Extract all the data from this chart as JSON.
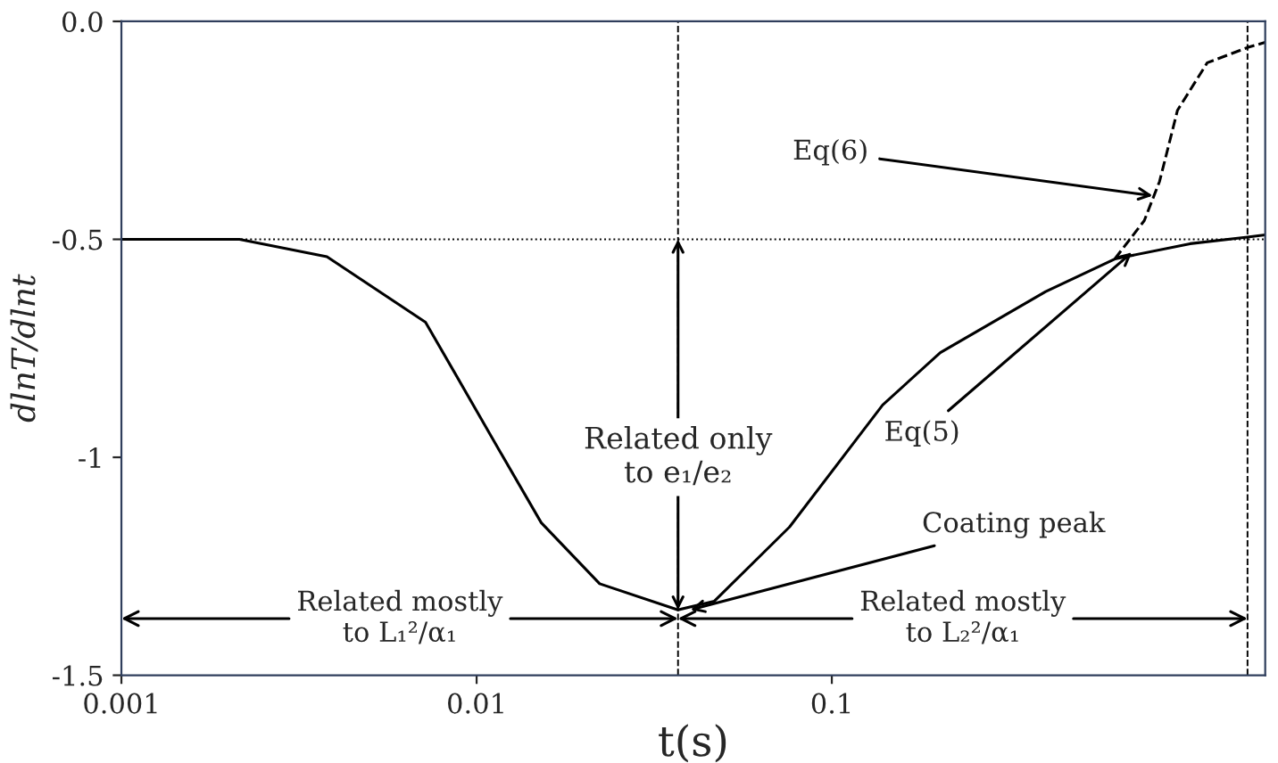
{
  "chart_data": {
    "type": "line",
    "xlabel": "t(s)",
    "ylabel": "dlnT/dlnt",
    "log": "x",
    "xlim": [
      0.001,
      1.66
    ],
    "xticks": [
      0.001,
      0.01,
      0.1
    ],
    "ylim": [
      -1.5,
      0
    ],
    "yticks": [
      {
        "value": 0,
        "label": "0.0"
      },
      -0.5,
      -1,
      -1.5
    ],
    "grid": false,
    "series": [
      {
        "color": "#000000",
        "line_style": "solid",
        "x": [
          0.001,
          0.00215,
          0.00379,
          0.00718,
          0.0117,
          0.0152,
          0.0222,
          0.0369,
          0.0467,
          0.076,
          0.139,
          0.202,
          0.4,
          0.626,
          1.02,
          1.48,
          1.66
        ],
        "values": [
          -0.5,
          -0.5,
          -0.54,
          -0.69,
          -0.99,
          -1.15,
          -1.29,
          -1.35,
          -1.33,
          -1.16,
          -0.88,
          -0.76,
          -0.62,
          -0.545,
          -0.51,
          -0.495,
          -0.49
        ]
      },
      {
        "color": "#000000",
        "line_style": "dashed",
        "x": [
          0.626,
          0.758,
          0.837,
          0.94,
          1.14,
          1.48,
          1.66
        ],
        "values": [
          -0.545,
          -0.457,
          -0.367,
          -0.204,
          -0.095,
          -0.06,
          -0.048
        ]
      }
    ],
    "ref_lines": [
      {
        "axis": "y",
        "value": -0.5,
        "line_style": "dotted",
        "color": "#000000"
      },
      {
        "axis": "x",
        "value": 0.0369,
        "line_style": "dashed",
        "color": "#000000"
      },
      {
        "axis": "x",
        "value": 1.48,
        "line_style": "dashed",
        "color": "#000000"
      }
    ],
    "annotations": [
      {
        "text": "Eq(6)",
        "x": 0.8,
        "y": -0.4
      },
      {
        "text": "Eq(5)",
        "x": 0.7,
        "y": -0.53
      },
      {
        "text": "Coating peak",
        "x": 0.04,
        "y": -1.35
      },
      {
        "text": "Related only\nto e₁/e₂",
        "x": 0.0369,
        "y": -1.0
      },
      {
        "text": "Related mostly\nto L₁²/α₁",
        "x": 0.0369,
        "y": -1.37
      },
      {
        "text": "Related mostly\nto L₂²/α₁",
        "x": 1.48,
        "y": -1.37
      }
    ]
  }
}
